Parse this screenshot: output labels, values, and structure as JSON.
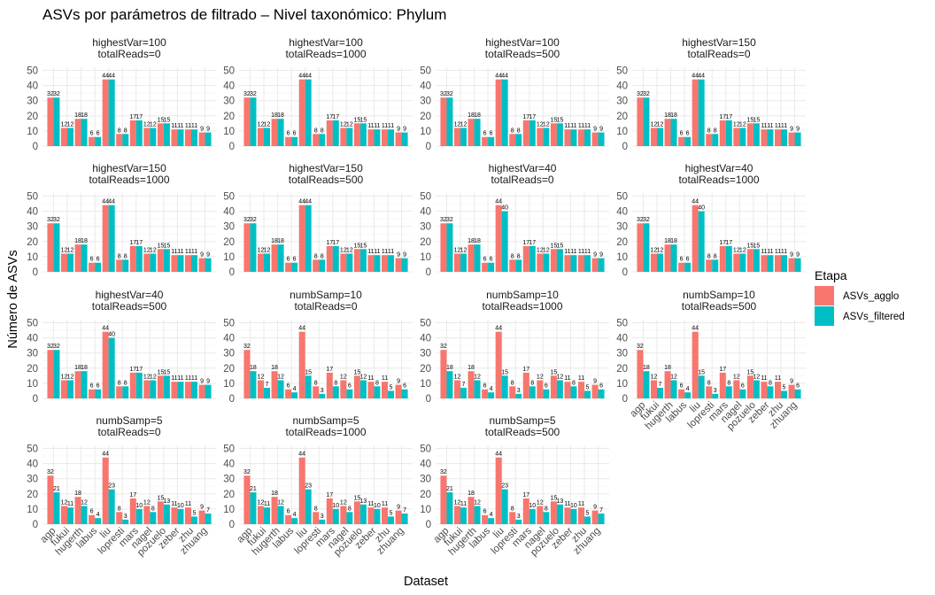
{
  "chart_data": {
    "type": "bar",
    "title": "ASVs por parámetros de filtrado – Nivel taxonómico: Phylum",
    "xlabel": "Dataset",
    "ylabel": "Número de ASVs",
    "ylim": [
      0,
      52
    ],
    "yticks": [
      0,
      10,
      20,
      30,
      40,
      50
    ],
    "grid": true,
    "categories": [
      "agp",
      "fukui",
      "hugerth",
      "labus",
      "liu",
      "lopresti",
      "mars",
      "nagel",
      "pozuelo",
      "zeber",
      "zhu",
      "zhuang"
    ],
    "legend": {
      "title": "Etapa",
      "position": "right",
      "entries": [
        {
          "name": "ASVs_agglo",
          "color": "#F8766D"
        },
        {
          "name": "ASVs_filtered",
          "color": "#00BFC4"
        }
      ]
    },
    "panels": [
      {
        "line1": "highestVar=100",
        "line2": "totalReads=0",
        "agglo": [
          32,
          12,
          18,
          6,
          44,
          8,
          17,
          12,
          15,
          11,
          11,
          9
        ],
        "filtered": [
          32,
          12,
          18,
          6,
          44,
          8,
          17,
          12,
          15,
          11,
          11,
          9
        ]
      },
      {
        "line1": "highestVar=100",
        "line2": "totalReads=1000",
        "agglo": [
          32,
          12,
          18,
          6,
          44,
          8,
          17,
          12,
          15,
          11,
          11,
          9
        ],
        "filtered": [
          32,
          12,
          18,
          6,
          44,
          8,
          17,
          12,
          15,
          11,
          11,
          9
        ]
      },
      {
        "line1": "highestVar=100",
        "line2": "totalReads=500",
        "agglo": [
          32,
          12,
          18,
          6,
          44,
          8,
          17,
          12,
          15,
          11,
          11,
          9
        ],
        "filtered": [
          32,
          12,
          18,
          6,
          44,
          8,
          17,
          12,
          15,
          11,
          11,
          9
        ]
      },
      {
        "line1": "highestVar=150",
        "line2": "totalReads=0",
        "agglo": [
          32,
          12,
          18,
          6,
          44,
          8,
          17,
          12,
          15,
          11,
          11,
          9
        ],
        "filtered": [
          32,
          12,
          18,
          6,
          44,
          8,
          17,
          12,
          15,
          11,
          11,
          9
        ]
      },
      {
        "line1": "highestVar=150",
        "line2": "totalReads=1000",
        "agglo": [
          32,
          12,
          18,
          6,
          44,
          8,
          17,
          12,
          15,
          11,
          11,
          9
        ],
        "filtered": [
          32,
          12,
          18,
          6,
          44,
          8,
          17,
          12,
          15,
          11,
          11,
          9
        ]
      },
      {
        "line1": "highestVar=150",
        "line2": "totalReads=500",
        "agglo": [
          32,
          12,
          18,
          6,
          44,
          8,
          17,
          12,
          15,
          11,
          11,
          9
        ],
        "filtered": [
          32,
          12,
          18,
          6,
          44,
          8,
          17,
          12,
          15,
          11,
          11,
          9
        ]
      },
      {
        "line1": "highestVar=40",
        "line2": "totalReads=0",
        "agglo": [
          32,
          12,
          18,
          6,
          44,
          8,
          17,
          12,
          15,
          11,
          11,
          9
        ],
        "filtered": [
          32,
          12,
          18,
          6,
          40,
          8,
          17,
          12,
          15,
          11,
          11,
          9
        ]
      },
      {
        "line1": "highestVar=40",
        "line2": "totalReads=1000",
        "agglo": [
          32,
          12,
          18,
          6,
          44,
          8,
          17,
          12,
          15,
          11,
          11,
          9
        ],
        "filtered": [
          32,
          12,
          18,
          6,
          40,
          8,
          17,
          12,
          15,
          11,
          11,
          9
        ]
      },
      {
        "line1": "highestVar=40",
        "line2": "totalReads=500",
        "agglo": [
          32,
          12,
          18,
          6,
          44,
          8,
          17,
          12,
          15,
          11,
          11,
          9
        ],
        "filtered": [
          32,
          12,
          18,
          6,
          40,
          8,
          17,
          12,
          15,
          11,
          11,
          9
        ]
      },
      {
        "line1": "numbSamp=10",
        "line2": "totalReads=0",
        "agglo": [
          32,
          12,
          18,
          6,
          44,
          8,
          17,
          12,
          15,
          11,
          11,
          9
        ],
        "filtered": [
          18,
          7,
          12,
          4,
          15,
          3,
          8,
          6,
          12,
          8,
          5,
          6
        ]
      },
      {
        "line1": "numbSamp=10",
        "line2": "totalReads=1000",
        "agglo": [
          32,
          12,
          18,
          6,
          44,
          8,
          17,
          12,
          15,
          11,
          11,
          9
        ],
        "filtered": [
          18,
          7,
          12,
          4,
          15,
          3,
          8,
          6,
          12,
          8,
          5,
          6
        ]
      },
      {
        "line1": "numbSamp=10",
        "line2": "totalReads=500",
        "agglo": [
          32,
          12,
          18,
          6,
          44,
          8,
          17,
          12,
          15,
          11,
          11,
          9
        ],
        "filtered": [
          18,
          7,
          12,
          4,
          15,
          3,
          8,
          6,
          12,
          8,
          5,
          6
        ]
      },
      {
        "line1": "numbSamp=5",
        "line2": "totalReads=0",
        "agglo": [
          32,
          12,
          18,
          6,
          44,
          8,
          17,
          12,
          15,
          11,
          11,
          9
        ],
        "filtered": [
          21,
          11,
          12,
          4,
          23,
          3,
          10,
          8,
          13,
          10,
          5,
          7
        ]
      },
      {
        "line1": "numbSamp=5",
        "line2": "totalReads=1000",
        "agglo": [
          32,
          12,
          18,
          6,
          44,
          8,
          17,
          12,
          15,
          11,
          11,
          9
        ],
        "filtered": [
          21,
          11,
          12,
          4,
          23,
          3,
          10,
          8,
          13,
          10,
          5,
          7
        ]
      },
      {
        "line1": "numbSamp=5",
        "line2": "totalReads=500",
        "agglo": [
          32,
          12,
          18,
          6,
          44,
          8,
          17,
          12,
          15,
          11,
          11,
          9
        ],
        "filtered": [
          21,
          11,
          12,
          4,
          23,
          3,
          10,
          8,
          13,
          10,
          5,
          7
        ]
      }
    ]
  }
}
